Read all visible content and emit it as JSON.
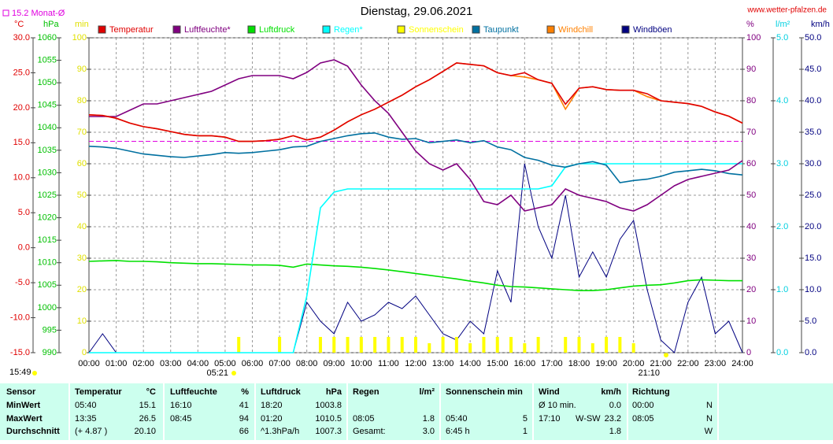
{
  "chart_data": {
    "type": "line",
    "title": "Dienstag, 29.06.2021",
    "source": "www.wetter-pfalzen.de",
    "month_avg": {
      "label": "15.2 Monat-Ø",
      "value": 15.2,
      "color": "#e000e0"
    },
    "update": "15:49",
    "sunrise": "05:21",
    "sunset": "21:10",
    "axes": {
      "temp": {
        "label": "°C",
        "color": "#e00000",
        "lim": [
          -15,
          30
        ],
        "ticks": [
          {
            "value": -15,
            "label": "-15.0"
          },
          {
            "value": -10,
            "label": "-10.0"
          },
          {
            "value": -5,
            "label": "-5.0"
          },
          {
            "value": 0,
            "label": "0.0"
          },
          {
            "value": 5,
            "label": "5.0"
          },
          {
            "value": 10,
            "label": "10.0"
          },
          {
            "value": 15,
            "label": "15.0"
          },
          {
            "value": 20,
            "label": "20.0"
          },
          {
            "value": 25,
            "label": "25.0"
          },
          {
            "value": 30,
            "label": "30.0"
          }
        ]
      },
      "hpa": {
        "label": "hPa",
        "color": "#00c000",
        "lim": [
          990,
          1060
        ],
        "ticks": [
          990,
          995,
          1000,
          1005,
          1010,
          1015,
          1020,
          1025,
          1030,
          1035,
          1040,
          1045,
          1050,
          1055,
          1060
        ]
      },
      "min": {
        "label": "min",
        "color": "#e0e000",
        "lim": [
          0,
          100
        ],
        "ticks": [
          0,
          10,
          20,
          30,
          40,
          50,
          60,
          70,
          80,
          90,
          100
        ]
      },
      "pct": {
        "label": "%",
        "color": "#800080",
        "lim": [
          0,
          100
        ],
        "ticks": [
          0,
          10,
          20,
          30,
          40,
          50,
          60,
          70,
          80,
          90,
          100
        ]
      },
      "rain": {
        "label": "l/m²",
        "color": "#00d0e0",
        "lim": [
          0,
          5
        ],
        "ticks": [
          {
            "value": 0,
            "label": "0.0"
          },
          {
            "value": 1,
            "label": "1.0"
          },
          {
            "value": 2,
            "label": "2.0"
          },
          {
            "value": 3,
            "label": "3.0"
          },
          {
            "value": 4,
            "label": "4.0"
          },
          {
            "value": 5,
            "label": "5.0"
          }
        ]
      },
      "wind": {
        "label": "km/h",
        "color": "#000080",
        "lim": [
          0,
          50
        ],
        "ticks": [
          {
            "value": 0,
            "label": "0.0"
          },
          {
            "value": 5,
            "label": "5.0"
          },
          {
            "value": 10,
            "label": "10.0"
          },
          {
            "value": 15,
            "label": "15.0"
          },
          {
            "value": 20,
            "label": "20.0"
          },
          {
            "value": 25,
            "label": "25.0"
          },
          {
            "value": 30,
            "label": "30.0"
          },
          {
            "value": 35,
            "label": "35.0"
          },
          {
            "value": 40,
            "label": "40.0"
          },
          {
            "value": 45,
            "label": "45.0"
          },
          {
            "value": 50,
            "label": "50.0"
          }
        ]
      }
    },
    "xlim": [
      0,
      24
    ],
    "xticks": [
      {
        "value": 0,
        "label": "00:00"
      },
      {
        "value": 1,
        "label": "01:00"
      },
      {
        "value": 2,
        "label": "02:00"
      },
      {
        "value": 3,
        "label": "03:00"
      },
      {
        "value": 4,
        "label": "04:00"
      },
      {
        "value": 5,
        "label": "05:00"
      },
      {
        "value": 6,
        "label": "06:00"
      },
      {
        "value": 7,
        "label": "07:00"
      },
      {
        "value": 8,
        "label": "08:00"
      },
      {
        "value": 9,
        "label": "09:00"
      },
      {
        "value": 10,
        "label": "10:00"
      },
      {
        "value": 11,
        "label": "11:00"
      },
      {
        "value": 12,
        "label": "12:00"
      },
      {
        "value": 13,
        "label": "13:00"
      },
      {
        "value": 14,
        "label": "14:00"
      },
      {
        "value": 15,
        "label": "15:00"
      },
      {
        "value": 16,
        "label": "16:00"
      },
      {
        "value": 17,
        "label": "17:00"
      },
      {
        "value": 18,
        "label": "18:00"
      },
      {
        "value": 19,
        "label": "19:00"
      },
      {
        "value": 20,
        "label": "20:00"
      },
      {
        "value": 21,
        "label": "21:00"
      },
      {
        "value": 22,
        "label": "22:00"
      },
      {
        "value": 23,
        "label": "23:00"
      },
      {
        "value": 24,
        "label": "24:00"
      }
    ],
    "grid": true,
    "x": [
      0,
      0.5,
      1,
      1.5,
      2,
      2.5,
      3,
      3.5,
      4,
      4.5,
      5,
      5.5,
      6,
      6.5,
      7,
      7.5,
      8,
      8.5,
      9,
      9.5,
      10,
      10.5,
      11,
      11.5,
      12,
      12.5,
      13,
      13.5,
      14,
      14.5,
      15,
      15.5,
      16,
      16.5,
      17,
      17.5,
      18,
      18.5,
      19,
      19.5,
      20,
      20.5,
      21,
      21.5,
      22,
      22.5,
      23,
      23.5,
      24
    ],
    "series": [
      {
        "name": "Temperatur",
        "color": "#e00000",
        "axis": "temp",
        "values": [
          19.0,
          18.9,
          18.5,
          17.8,
          17.3,
          17.0,
          16.6,
          16.2,
          16.0,
          16.0,
          15.8,
          15.2,
          15.2,
          15.3,
          15.5,
          16.0,
          15.4,
          15.8,
          16.8,
          18.0,
          19.0,
          19.8,
          20.8,
          21.8,
          23.0,
          24.0,
          25.2,
          26.4,
          26.2,
          26.0,
          25.0,
          24.6,
          25.0,
          24.0,
          23.5,
          20.5,
          22.8,
          23.0,
          22.6,
          22.5,
          22.5,
          22.0,
          21.0,
          20.8,
          20.6,
          20.2,
          19.4,
          18.8,
          17.8
        ]
      },
      {
        "name": "Luftfeuchte*",
        "color": "#800080",
        "axis": "pct",
        "values": [
          75,
          75,
          75,
          77,
          79,
          79,
          80,
          81,
          82,
          83,
          85,
          87,
          88,
          88,
          88,
          87,
          89,
          92,
          93,
          91,
          85,
          80,
          76,
          70,
          64,
          60,
          58,
          60,
          55,
          48,
          47,
          50,
          45,
          46,
          47,
          52,
          50,
          49,
          48,
          46,
          45,
          47,
          50,
          53,
          55,
          56,
          57,
          58,
          61
        ]
      },
      {
        "name": "Luftdruck",
        "color": "#00e000",
        "axis": "hpa",
        "values": [
          1010.3,
          1010.4,
          1010.5,
          1010.3,
          1010.3,
          1010.2,
          1010.0,
          1009.9,
          1009.8,
          1009.8,
          1009.7,
          1009.6,
          1009.5,
          1009.5,
          1009.4,
          1009.0,
          1009.7,
          1009.5,
          1009.3,
          1009.2,
          1009.0,
          1008.7,
          1008.4,
          1008.0,
          1007.6,
          1007.2,
          1006.8,
          1006.4,
          1005.9,
          1005.5,
          1005.0,
          1004.7,
          1004.6,
          1004.4,
          1004.2,
          1004.0,
          1003.8,
          1003.8,
          1004.0,
          1004.4,
          1004.8,
          1005.0,
          1005.1,
          1005.5,
          1006.0,
          1006.2,
          1006.1,
          1006.0,
          1006.0
        ]
      },
      {
        "name": "Regen*",
        "color": "#00ffff",
        "axis": "rain",
        "values": [
          0,
          0,
          0,
          0,
          0,
          0,
          0,
          0,
          0,
          0,
          0,
          0,
          0,
          0,
          0,
          0,
          0.9,
          2.3,
          2.55,
          2.6,
          2.6,
          2.6,
          2.6,
          2.6,
          2.6,
          2.6,
          2.6,
          2.6,
          2.6,
          2.6,
          2.6,
          2.6,
          2.6,
          2.6,
          2.65,
          2.95,
          3.0,
          3.0,
          3.0,
          3.0,
          3.0,
          3.0,
          3.0,
          3.0,
          3.0,
          3.0,
          3.0,
          3.0,
          3.0
        ]
      },
      {
        "name": "Sonnenschein",
        "color": "#ffff00",
        "axis": "min",
        "kind": "bar",
        "values": [
          0,
          0,
          0,
          0,
          0,
          0,
          0,
          0,
          0,
          0,
          0,
          5,
          0,
          0,
          5,
          0,
          0,
          5,
          5,
          5,
          5,
          5,
          5,
          5,
          5,
          3,
          5,
          5,
          3,
          5,
          5,
          5,
          3,
          5,
          0,
          5,
          5,
          3,
          5,
          5,
          3,
          0,
          0,
          0,
          0,
          0,
          0,
          0,
          0
        ]
      },
      {
        "name": "Taupunkt",
        "color": "#0070a0",
        "axis": "temp",
        "values": [
          14.5,
          14.4,
          14.2,
          13.8,
          13.4,
          13.2,
          13.0,
          12.9,
          13.1,
          13.3,
          13.6,
          13.5,
          13.6,
          13.8,
          14.0,
          14.4,
          14.5,
          15.2,
          15.6,
          16.0,
          16.3,
          16.4,
          15.8,
          15.5,
          15.6,
          15.0,
          15.2,
          15.4,
          15.0,
          15.3,
          14.4,
          14.0,
          12.9,
          12.5,
          11.8,
          11.5,
          12.0,
          12.3,
          11.8,
          9.3,
          9.6,
          9.8,
          10.2,
          10.8,
          11.0,
          11.2,
          11.0,
          10.6,
          10.4
        ]
      },
      {
        "name": "Windchill",
        "color": "#ff8000",
        "axis": "temp",
        "values": [
          19.0,
          18.9,
          18.5,
          17.8,
          17.3,
          17.0,
          16.6,
          16.2,
          16.0,
          16.0,
          15.8,
          15.2,
          15.2,
          15.3,
          15.5,
          16.0,
          15.4,
          15.8,
          16.8,
          18.0,
          19.0,
          19.8,
          20.8,
          21.8,
          23.0,
          24.0,
          25.2,
          26.4,
          26.2,
          26.0,
          25.0,
          24.6,
          24.4,
          24.0,
          23.5,
          19.8,
          22.8,
          23.0,
          22.6,
          22.5,
          22.5,
          21.6,
          21.0,
          20.8,
          20.6,
          20.2,
          19.4,
          18.8,
          17.8
        ]
      },
      {
        "name": "Windböen",
        "color": "#000080",
        "axis": "wind",
        "values": [
          0,
          3,
          0,
          0,
          0,
          0,
          0,
          0,
          0,
          0,
          0,
          0,
          0,
          0,
          0,
          0,
          8,
          5,
          3,
          8,
          5,
          6,
          8,
          7,
          9,
          6,
          3,
          2,
          5,
          3,
          13,
          8,
          30,
          20,
          15,
          25,
          12,
          16,
          12,
          18,
          21,
          10,
          2,
          0,
          8,
          12,
          3,
          5,
          0
        ]
      }
    ]
  },
  "table": {
    "header": [
      "Sensor",
      "Temperatur",
      "°C",
      "Luftfeuchte",
      "%",
      "Luftdruck",
      "hPa",
      "Regen",
      "l/m²",
      "Sonnenschein min",
      null,
      "Wind",
      null,
      "km/h",
      "Richtung",
      null
    ],
    "rows": [
      [
        "MinWert",
        "05:40",
        "15.1",
        "16:10",
        "41",
        "18:20",
        "1003.8",
        null,
        null,
        null,
        null,
        "Ø 10 min.",
        null,
        "0.0",
        "00:00",
        "N"
      ],
      [
        "MaxWert",
        "13:35",
        "26.5",
        "08:45",
        "94",
        "01:20",
        "1010.5",
        "08:05",
        "1.8",
        "05:40",
        "5",
        "17:10",
        "W-SW",
        "23.2",
        "08:05",
        "N"
      ],
      [
        "Durchschnitt",
        "(+ 4.87 )",
        "20.10",
        null,
        "66",
        "^1.3hPa/h",
        "1007.3",
        "Gesamt:",
        "3.0",
        "6:45 h",
        "1",
        null,
        null,
        "1.8",
        null,
        "W"
      ]
    ]
  }
}
